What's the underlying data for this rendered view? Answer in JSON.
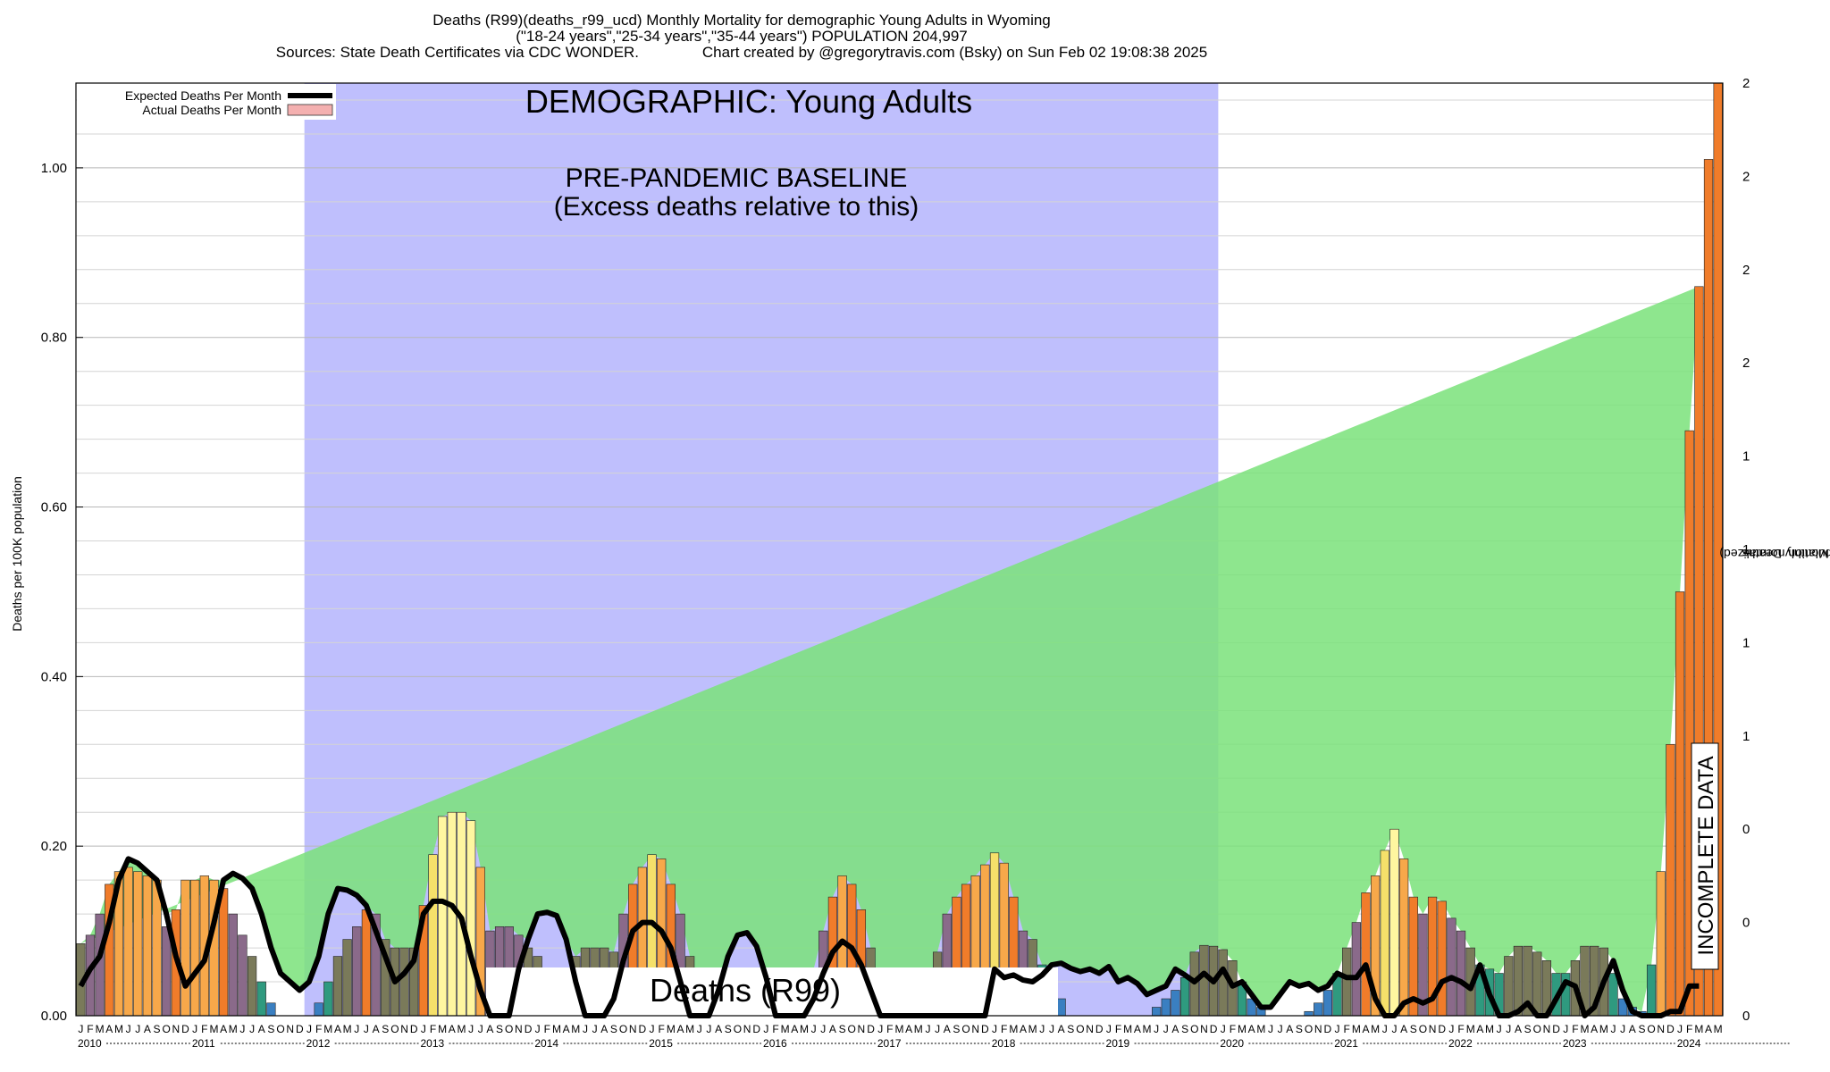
{
  "header": {
    "line1": "Deaths (R99)(deaths_r99_ucd) Monthly Mortality for demographic Young Adults in Wyoming",
    "line2": "(\"18-24 years\",\"25-34 years\",\"35-44 years\") POPULATION 204,997",
    "line3": "Sources: State Death Certificates via CDC WONDER.               Chart created by @gregorytravis.com (Bsky) on Sun Feb 02 19:08:38 2025"
  },
  "colors": {
    "baseline_band": "#bfbffd",
    "expected_line": "#000000",
    "excess_fill": "#7ae27a",
    "actual_legend": "#f4b0b0",
    "incomplete_hatch": "#9a9a9a",
    "bar_palette": [
      "#3a7fc1",
      "#2f9a7f",
      "#7a7a5a",
      "#8a6a8a",
      "#f07c2a",
      "#f7a84a",
      "#f5e06a",
      "#fff6a0"
    ]
  },
  "chart_data": {
    "type": "bar",
    "title": "Deaths (R99)(deaths_r99_ucd) Monthly Mortality for demographic Young Adults in Wyoming",
    "ylabel": "Deaths per 100K population",
    "y2label": [
      "Total Monthly Deaths",
      "(2023 population normalized)"
    ],
    "ylim": [
      0,
      1.1
    ],
    "yticks": [
      0,
      0.2,
      0.4,
      0.6,
      0.8,
      1.0
    ],
    "ytick_labels": [
      "0.00",
      "0.20",
      "0.40",
      "0.60",
      "0.80",
      "1.00"
    ],
    "y2tick_labels": [
      "0",
      "0",
      "0",
      "1",
      "1",
      "1",
      "1",
      "2",
      "2",
      "2",
      "2"
    ],
    "grid": true,
    "legend_position": "top-left",
    "x_start": "2010-01",
    "month_letters": [
      "J",
      "F",
      "M",
      "A",
      "M",
      "J",
      "J",
      "A",
      "S",
      "O",
      "N",
      "D"
    ],
    "years": [
      "2010",
      "2011",
      "2012",
      "2013",
      "2014",
      "2015",
      "2016",
      "2017",
      "2018",
      "2019",
      "2020",
      "2021",
      "2022",
      "2023",
      "2024"
    ],
    "series": [
      {
        "name": "Expected Deaths Per Month",
        "values": [
          0.035,
          0.055,
          0.07,
          0.11,
          0.16,
          0.185,
          0.18,
          0.17,
          0.16,
          0.12,
          0.07,
          0.035,
          0.05,
          0.065,
          0.11,
          0.16,
          0.168,
          0.162,
          0.15,
          0.12,
          0.08,
          0.05,
          0.04,
          0.03,
          0.04,
          0.07,
          0.12,
          0.15,
          0.148,
          0.142,
          0.13,
          0.1,
          0.07,
          0.04,
          0.05,
          0.065,
          0.12,
          0.135,
          0.135,
          0.13,
          0.115,
          0.07,
          0.03,
          0.0,
          0.0,
          0.0,
          0.055,
          0.09,
          0.12,
          0.122,
          0.118,
          0.09,
          0.04,
          0.0,
          0.0,
          0.0,
          0.02,
          0.065,
          0.1,
          0.11,
          0.11,
          0.1,
          0.08,
          0.04,
          0.0,
          0.0,
          0.0,
          0.03,
          0.07,
          0.095,
          0.098,
          0.082,
          0.045,
          0.0,
          0.0,
          0.0,
          0.0,
          0.02,
          0.05,
          0.075,
          0.088,
          0.08,
          0.06,
          0.03,
          0.0,
          0.0,
          0.0,
          0.0,
          0.0,
          0.0,
          0.0,
          0.0,
          0.0,
          0.0,
          0.0,
          0.0,
          0.055,
          0.045,
          0.048,
          0.042,
          0.04,
          0.048,
          0.06,
          0.062,
          0.056,
          0.052,
          0.055,
          0.05,
          0.058,
          0.04,
          0.045,
          0.038,
          0.025,
          0.03,
          0.035,
          0.055,
          0.048,
          0.04,
          0.05,
          0.04,
          0.055,
          0.035,
          0.04,
          0.025,
          0.01,
          0.01,
          0.025,
          0.04,
          0.035,
          0.038,
          0.03,
          0.035,
          0.05,
          0.045,
          0.045,
          0.06,
          0.02,
          0.0,
          0.0,
          0.015,
          0.02,
          0.015,
          0.02,
          0.04,
          0.045,
          0.04,
          0.032,
          0.06,
          0.025,
          0.0,
          0.0,
          0.005,
          0.015,
          0.0,
          0.0,
          0.02,
          0.04,
          0.035,
          0.0,
          0.01,
          0.04,
          0.065,
          0.03,
          0.005,
          0.0,
          0.0,
          0.0,
          0.005,
          0.005,
          0.035,
          0.035
        ]
      },
      {
        "name": "Actual Deaths Per Month",
        "values": [
          0.085,
          0.095,
          0.12,
          0.155,
          0.17,
          0.175,
          0.17,
          0.165,
          0.16,
          0.105,
          0.125,
          0.16,
          0.16,
          0.165,
          0.16,
          0.15,
          0.12,
          0.095,
          0.07,
          0.04,
          0.015,
          0.0,
          0.0,
          0.0,
          0.0,
          0.015,
          0.04,
          0.07,
          0.09,
          0.105,
          0.125,
          0.12,
          0.09,
          0.08,
          0.08,
          0.08,
          0.13,
          0.19,
          0.235,
          0.24,
          0.24,
          0.23,
          0.175,
          0.1,
          0.105,
          0.105,
          0.095,
          0.08,
          0.07,
          0.055,
          0.04,
          0.055,
          0.07,
          0.08,
          0.08,
          0.08,
          0.075,
          0.12,
          0.155,
          0.175,
          0.19,
          0.185,
          0.155,
          0.12,
          0.07,
          0.04,
          0.02,
          0.0,
          0.0,
          0.0,
          0.0,
          0.0,
          0.0,
          0.0,
          0.0,
          0.0,
          0.0,
          0.055,
          0.1,
          0.14,
          0.165,
          0.155,
          0.125,
          0.08,
          0.0,
          0.0,
          0.0,
          0.0,
          0.0,
          0.0,
          0.075,
          0.12,
          0.14,
          0.155,
          0.165,
          0.178,
          0.192,
          0.18,
          0.14,
          0.1,
          0.09,
          0.06,
          0.04,
          0.02,
          0.0,
          0.0,
          0.0,
          0.0,
          0.0,
          0.0,
          0.0,
          0.0,
          0.0,
          0.01,
          0.02,
          0.03,
          0.045,
          0.075,
          0.083,
          0.082,
          0.078,
          0.065,
          0.04,
          0.02,
          0.01,
          0.0,
          0.0,
          0.0,
          0.0,
          0.005,
          0.015,
          0.03,
          0.05,
          0.08,
          0.11,
          0.145,
          0.165,
          0.195,
          0.22,
          0.185,
          0.14,
          0.12,
          0.14,
          0.135,
          0.115,
          0.1,
          0.08,
          0.06,
          0.055,
          0.05,
          0.07,
          0.082,
          0.082,
          0.075,
          0.065,
          0.05,
          0.05,
          0.065,
          0.082,
          0.082,
          0.08,
          0.05,
          0.02,
          0.01,
          0.005,
          0.06,
          0.17,
          0.32,
          0.5,
          0.69,
          0.86,
          1.01,
          1.1
        ]
      }
    ]
  },
  "annotations": {
    "demographic": "DEMOGRAPHIC: Young Adults",
    "baseline_line1": "PRE-PANDEMIC BASELINE",
    "baseline_line2": "(Excess deaths relative to this)",
    "cause_label": "Deaths (R99)",
    "incomplete": "INCOMPLETE DATA"
  }
}
